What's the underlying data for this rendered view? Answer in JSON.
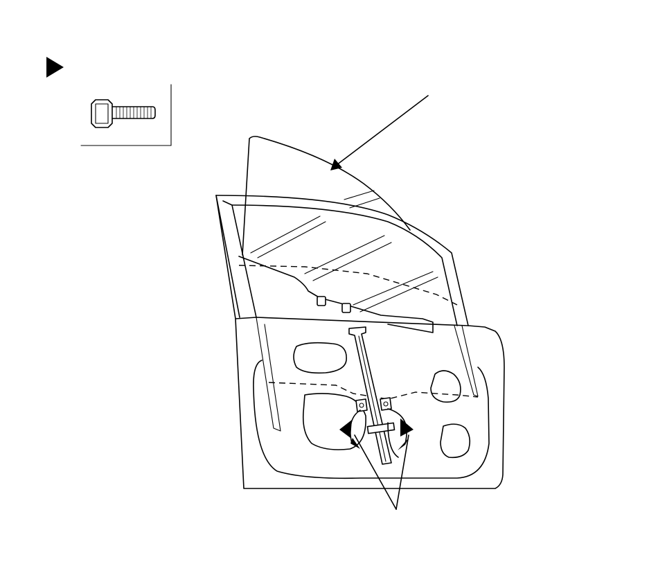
{
  "figure": {
    "line_color": "#000000",
    "background": "#ffffff",
    "icons": {
      "step_marker": "triangle-right-icon",
      "fastener": "flange-bolt-icon",
      "tighten_points": "torque-arrow-icon"
    }
  }
}
